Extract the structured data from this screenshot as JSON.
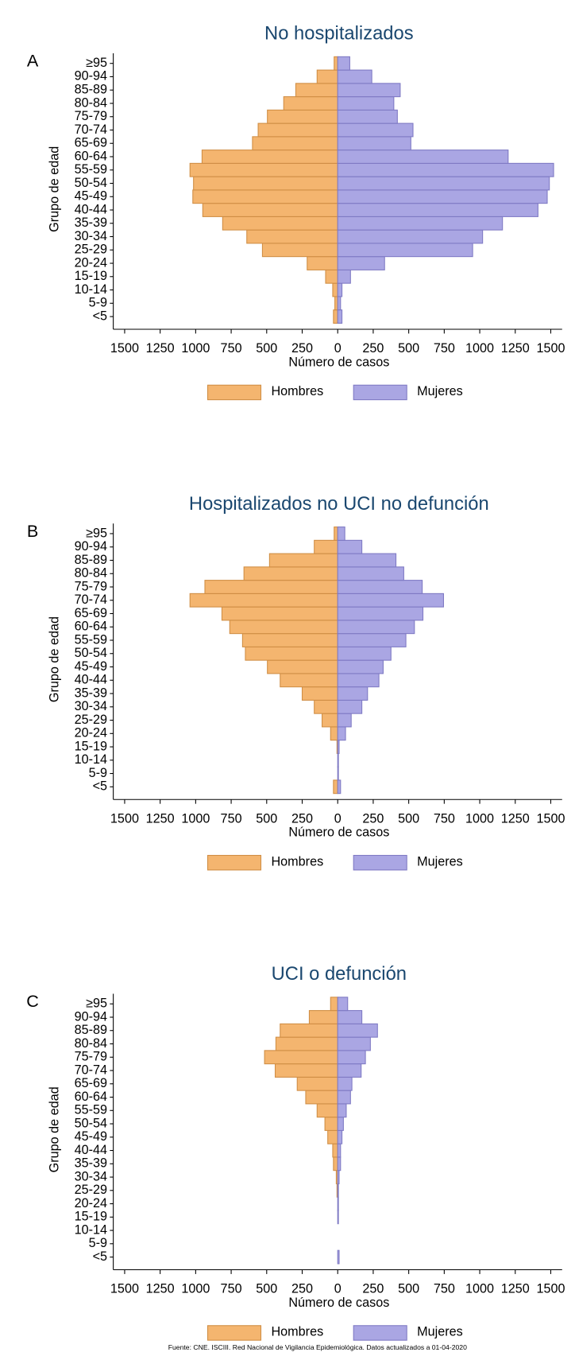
{
  "chart_data": [
    {
      "type": "pyramid",
      "panel": "A",
      "title": "No hospitalizados",
      "ylabel": "Grupo de edad",
      "xlabel": "Número de casos",
      "categories": [
        "<5",
        "5-9",
        "10-14",
        "15-19",
        "20-24",
        "25-29",
        "30-34",
        "35-39",
        "40-44",
        "45-49",
        "50-54",
        "55-59",
        "60-64",
        "65-69",
        "70-74",
        "75-79",
        "80-84",
        "85-89",
        "90-94",
        "≥95"
      ],
      "series": [
        {
          "name": "Hombres",
          "color": "#f4b56f",
          "side": "left",
          "values": [
            30,
            20,
            35,
            85,
            215,
            530,
            640,
            810,
            950,
            1020,
            1015,
            1040,
            955,
            600,
            560,
            495,
            380,
            295,
            145,
            25
          ]
        },
        {
          "name": "Mujeres",
          "color": "#aaa6e3",
          "side": "right",
          "values": [
            30,
            20,
            30,
            90,
            330,
            950,
            1020,
            1160,
            1410,
            1475,
            1490,
            1520,
            1200,
            515,
            530,
            420,
            395,
            440,
            240,
            85
          ]
        }
      ],
      "xlim": [
        -1580,
        1580
      ],
      "xticks": [
        {
          "value": -1500,
          "label": "1500"
        },
        {
          "value": -1250,
          "label": "1250"
        },
        {
          "value": -1000,
          "label": "1000"
        },
        {
          "value": -750,
          "label": "750"
        },
        {
          "value": -500,
          "label": "500"
        },
        {
          "value": -250,
          "label": "250"
        },
        0,
        250,
        500,
        750,
        1000,
        1250,
        1500
      ],
      "legend": "bottom"
    },
    {
      "type": "pyramid",
      "panel": "B",
      "title": "Hospitalizados no UCI no defunción",
      "ylabel": "Grupo de edad",
      "xlabel": "Número de casos",
      "categories": [
        "<5",
        "5-9",
        "10-14",
        "15-19",
        "20-24",
        "25-29",
        "30-34",
        "35-39",
        "40-44",
        "45-49",
        "50-54",
        "55-59",
        "60-64",
        "65-69",
        "70-74",
        "75-79",
        "80-84",
        "85-89",
        "90-94",
        "≥95"
      ],
      "series": [
        {
          "name": "Hombres",
          "color": "#f4b56f",
          "side": "left",
          "values": [
            30,
            0,
            0,
            5,
            50,
            110,
            165,
            250,
            405,
            495,
            650,
            670,
            760,
            815,
            1040,
            935,
            660,
            480,
            165,
            25
          ]
        },
        {
          "name": "Mujeres",
          "color": "#aaa6e3",
          "side": "right",
          "values": [
            20,
            5,
            5,
            10,
            55,
            95,
            170,
            210,
            290,
            320,
            375,
            480,
            540,
            600,
            745,
            595,
            465,
            410,
            170,
            50
          ]
        }
      ],
      "xlim": [
        -1580,
        1580
      ],
      "xticks": [
        {
          "value": -1500,
          "label": "1500"
        },
        {
          "value": -1250,
          "label": "1250"
        },
        {
          "value": -1000,
          "label": "1000"
        },
        {
          "value": -750,
          "label": "750"
        },
        {
          "value": -500,
          "label": "500"
        },
        {
          "value": -250,
          "label": "250"
        },
        0,
        250,
        500,
        750,
        1000,
        1250,
        1500
      ],
      "legend": "bottom"
    },
    {
      "type": "pyramid",
      "panel": "C",
      "title": "UCI o defunción",
      "ylabel": "Grupo de edad",
      "xlabel": "Número de casos",
      "categories": [
        "<5",
        "5-9",
        "10-14",
        "15-19",
        "20-24",
        "25-29",
        "30-34",
        "35-39",
        "40-44",
        "45-49",
        "50-54",
        "55-59",
        "60-64",
        "65-69",
        "70-74",
        "75-79",
        "80-84",
        "85-89",
        "90-94",
        "≥95"
      ],
      "series": [
        {
          "name": "Hombres",
          "color": "#f4b56f",
          "side": "left",
          "values": [
            0,
            0,
            0,
            0,
            0,
            5,
            10,
            30,
            35,
            70,
            90,
            145,
            225,
            285,
            440,
            515,
            435,
            405,
            200,
            50
          ]
        },
        {
          "name": "Mujeres",
          "color": "#aaa6e3",
          "side": "right",
          "values": [
            10,
            0,
            0,
            5,
            5,
            5,
            10,
            20,
            20,
            30,
            40,
            60,
            90,
            100,
            165,
            195,
            230,
            280,
            170,
            70
          ]
        }
      ],
      "xlim": [
        -1580,
        1580
      ],
      "xticks": [
        {
          "value": -1500,
          "label": "1500"
        },
        {
          "value": -1250,
          "label": "1250"
        },
        {
          "value": -1000,
          "label": "1000"
        },
        {
          "value": -750,
          "label": "750"
        },
        {
          "value": -500,
          "label": "500"
        },
        {
          "value": -250,
          "label": "250"
        },
        0,
        250,
        500,
        750,
        1000,
        1250,
        1500
      ],
      "legend": "bottom"
    }
  ],
  "source": "Fuente: CNE. ISCIII. Red Nacional de Vigilancia Epidemiológica. Datos actualizados a 01-04-2020"
}
